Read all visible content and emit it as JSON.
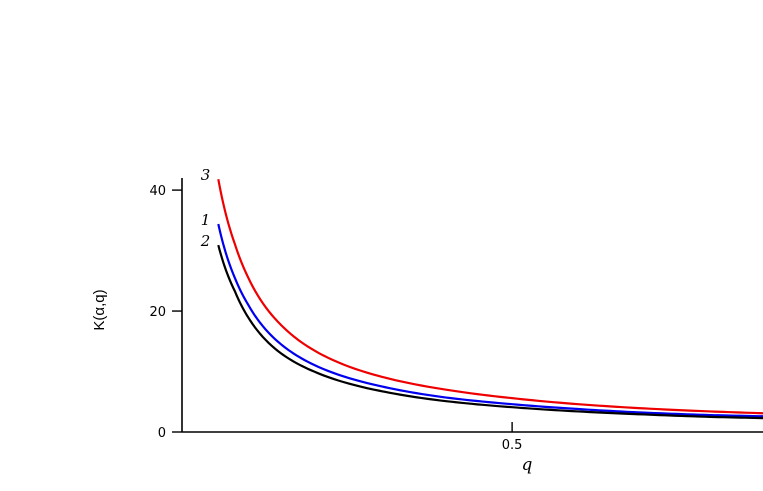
{
  "chart_data": {
    "type": "line",
    "xlabel": "q",
    "ylabel": "K(α,q)",
    "xlim": [
      0,
      0.88
    ],
    "ylim": [
      0,
      42
    ],
    "xticks": [
      0.5
    ],
    "xtick_labels": [
      "0.5"
    ],
    "yticks": [
      0,
      20,
      40
    ],
    "ytick_labels": [
      "0",
      "20",
      "40"
    ],
    "grid": false,
    "series": [
      {
        "name": "1",
        "color": "#0000ee",
        "x": [
          0.055,
          0.08,
          0.1,
          0.15,
          0.2,
          0.3,
          0.4,
          0.5,
          0.6,
          0.7,
          0.8,
          0.88
        ],
        "y": [
          34.4,
          25.5,
          21.1,
          14.5,
          11.1,
          7.6,
          5.7,
          4.6,
          3.8,
          3.2,
          2.8,
          2.6
        ]
      },
      {
        "name": "2",
        "color": "#000000",
        "x": [
          0.055,
          0.08,
          0.1,
          0.15,
          0.2,
          0.3,
          0.4,
          0.5,
          0.6,
          0.7,
          0.8,
          0.88
        ],
        "y": [
          30.9,
          23.3,
          19.0,
          13.0,
          10.0,
          6.8,
          5.1,
          4.1,
          3.4,
          2.9,
          2.5,
          2.3
        ]
      },
      {
        "name": "3",
        "color": "#ee0000",
        "x": [
          0.055,
          0.08,
          0.1,
          0.15,
          0.2,
          0.3,
          0.4,
          0.5,
          0.6,
          0.7,
          0.8,
          0.88
        ],
        "y": [
          41.8,
          31.1,
          25.6,
          17.7,
          13.5,
          9.2,
          7.0,
          5.6,
          4.6,
          3.9,
          3.4,
          3.1
        ]
      }
    ]
  }
}
